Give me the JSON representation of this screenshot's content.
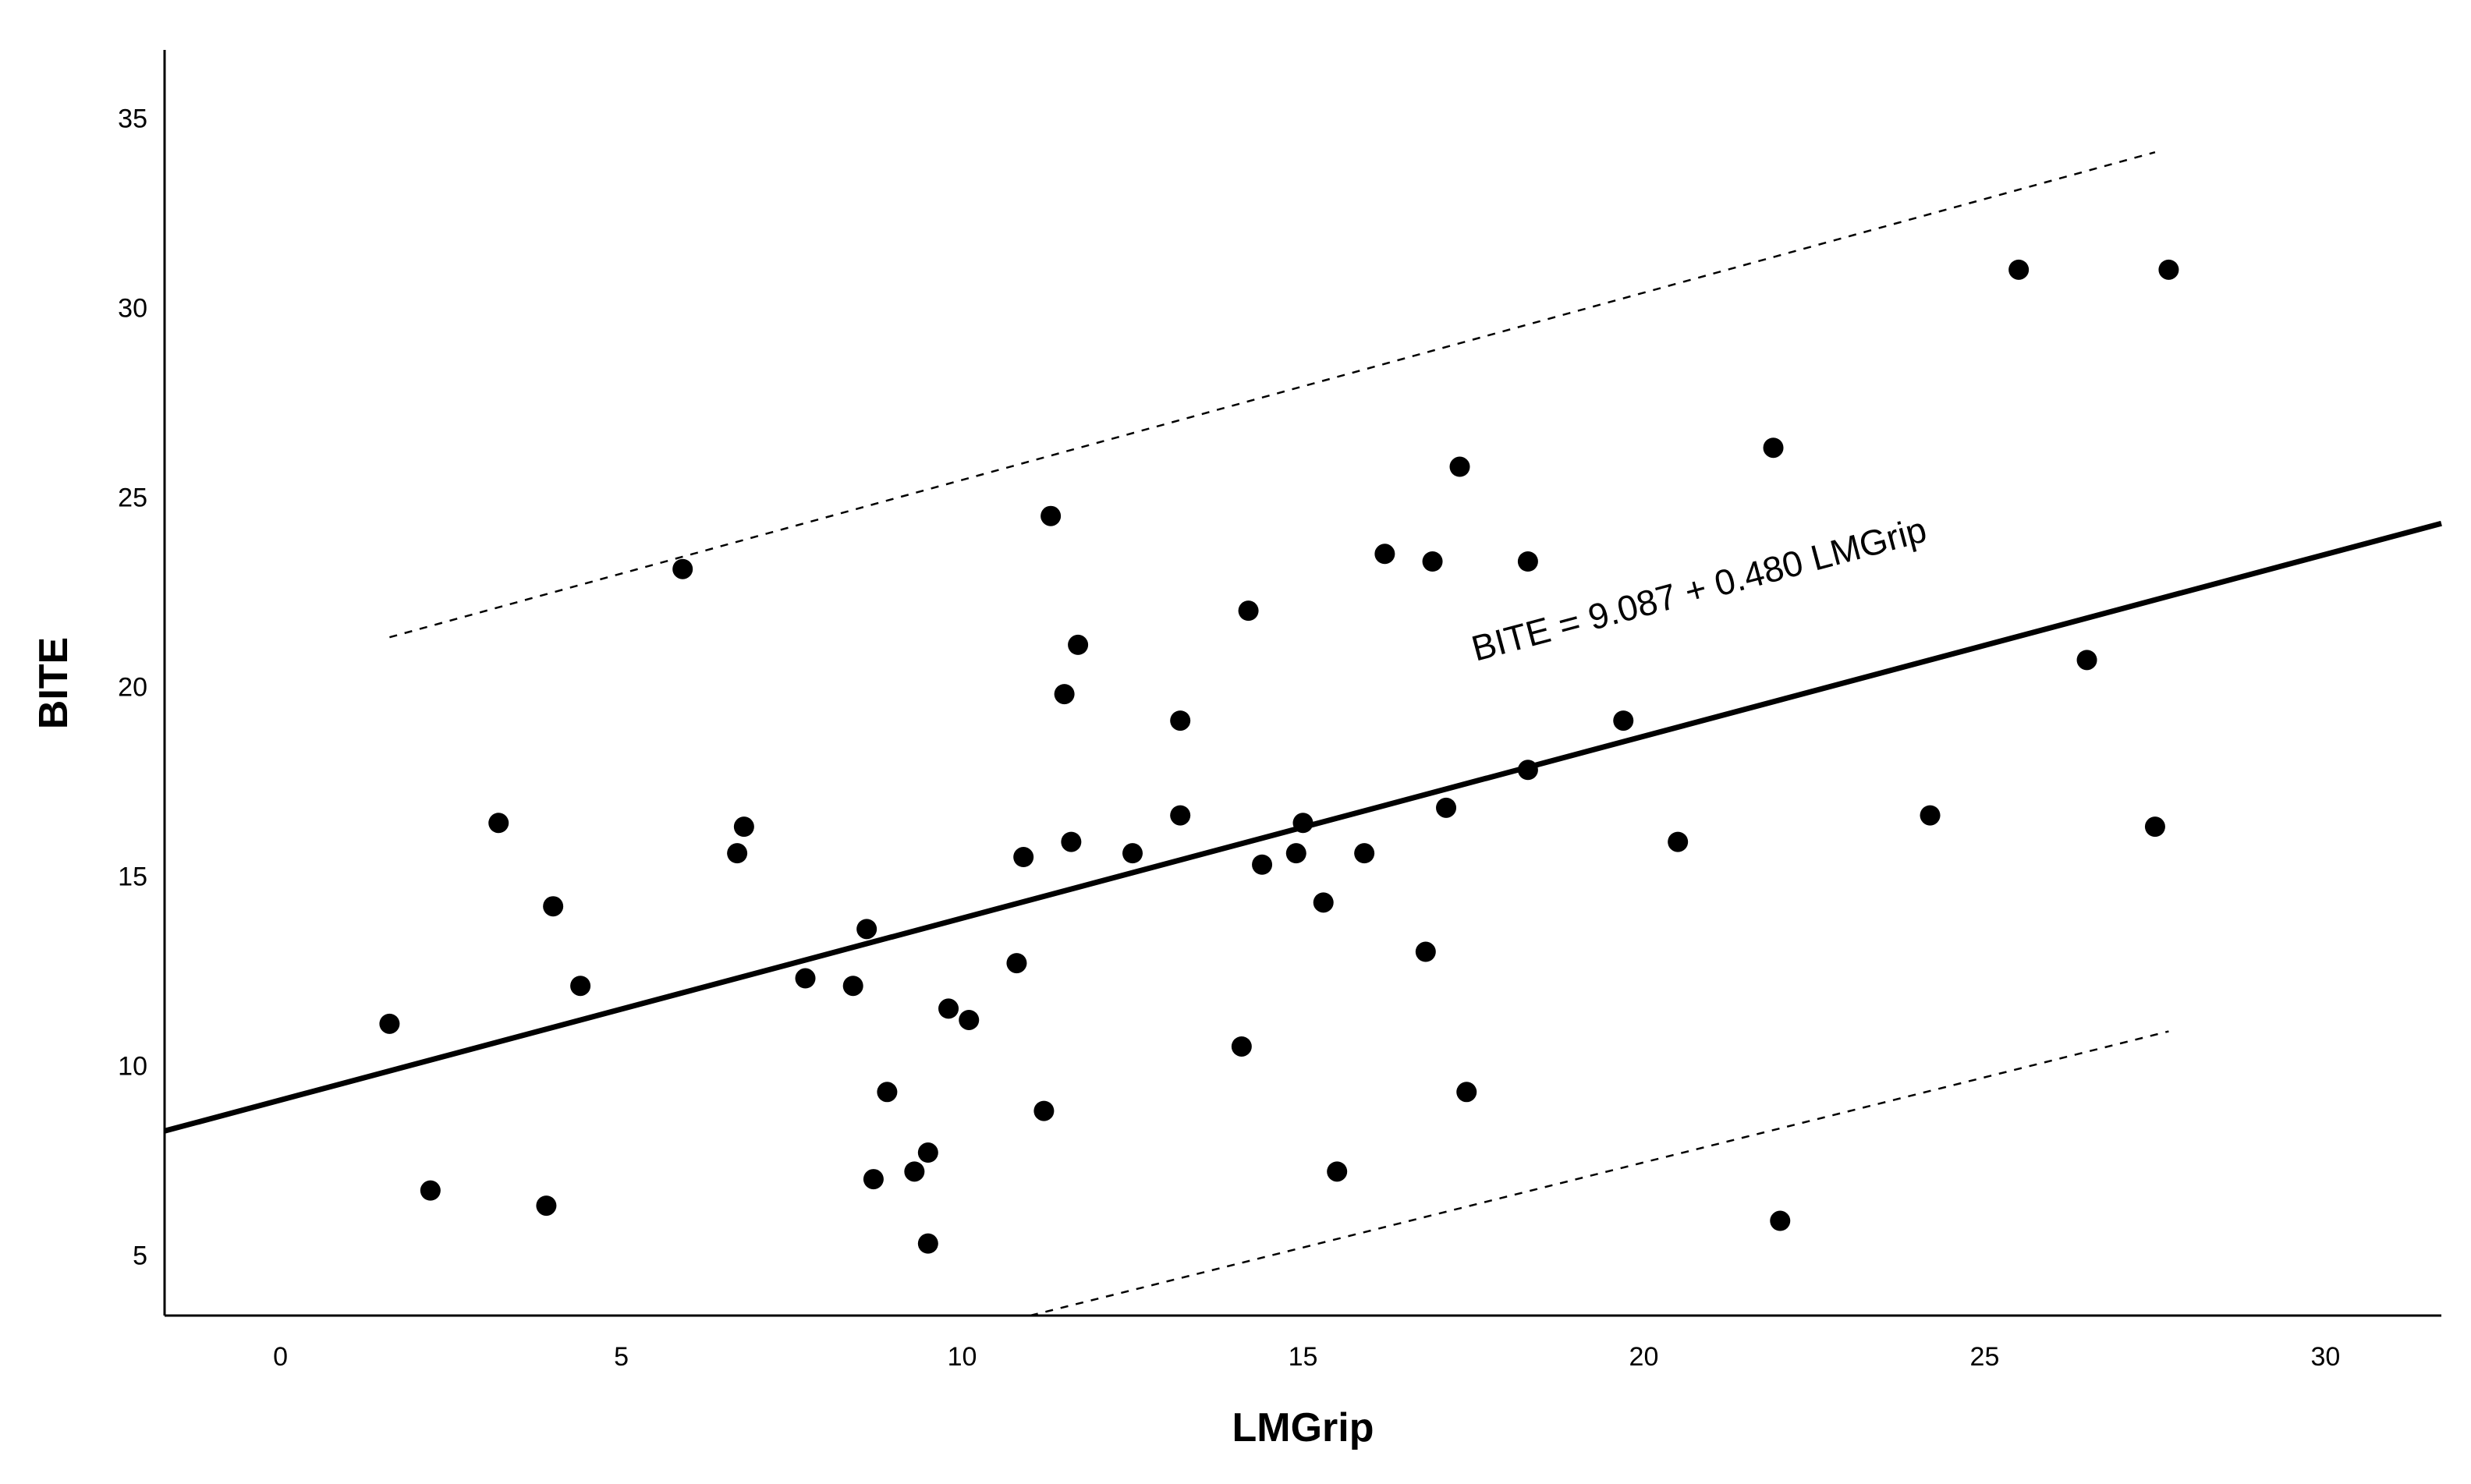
{
  "chart_data": {
    "type": "scatter",
    "xlabel": "LMGrip",
    "ylabel": "BITE",
    "xlim": [
      -1.7,
      31.7
    ],
    "ylim": [
      3.4,
      36.8
    ],
    "x_ticks": [
      "0",
      "5",
      "10",
      "15",
      "20",
      "25",
      "30"
    ],
    "y_ticks": [
      "5",
      "10",
      "15",
      "20",
      "25",
      "30",
      "35"
    ],
    "grid": false,
    "legend": "none",
    "points": [
      {
        "x": 1.6,
        "y": 11.1
      },
      {
        "x": 2.2,
        "y": 6.7
      },
      {
        "x": 3.2,
        "y": 16.4
      },
      {
        "x": 3.9,
        "y": 6.3
      },
      {
        "x": 4.0,
        "y": 14.2
      },
      {
        "x": 4.4,
        "y": 12.1
      },
      {
        "x": 5.9,
        "y": 23.1
      },
      {
        "x": 6.7,
        "y": 15.6
      },
      {
        "x": 6.8,
        "y": 16.3
      },
      {
        "x": 7.7,
        "y": 12.3
      },
      {
        "x": 8.4,
        "y": 12.1
      },
      {
        "x": 8.6,
        "y": 13.6
      },
      {
        "x": 8.7,
        "y": 7.0
      },
      {
        "x": 8.9,
        "y": 9.3
      },
      {
        "x": 9.3,
        "y": 7.2
      },
      {
        "x": 9.5,
        "y": 5.3
      },
      {
        "x": 9.5,
        "y": 7.7
      },
      {
        "x": 9.8,
        "y": 11.5
      },
      {
        "x": 10.1,
        "y": 11.2
      },
      {
        "x": 10.8,
        "y": 12.7
      },
      {
        "x": 10.9,
        "y": 15.5
      },
      {
        "x": 11.2,
        "y": 8.8
      },
      {
        "x": 11.3,
        "y": 24.5
      },
      {
        "x": 11.5,
        "y": 19.8
      },
      {
        "x": 11.6,
        "y": 15.9
      },
      {
        "x": 11.7,
        "y": 21.1
      },
      {
        "x": 12.5,
        "y": 15.6
      },
      {
        "x": 13.2,
        "y": 19.1
      },
      {
        "x": 13.2,
        "y": 16.6
      },
      {
        "x": 14.1,
        "y": 10.5
      },
      {
        "x": 14.2,
        "y": 22.0
      },
      {
        "x": 14.4,
        "y": 15.3
      },
      {
        "x": 14.9,
        "y": 15.6
      },
      {
        "x": 15.0,
        "y": 16.4
      },
      {
        "x": 15.3,
        "y": 14.3
      },
      {
        "x": 15.5,
        "y": 7.2
      },
      {
        "x": 15.9,
        "y": 15.6
      },
      {
        "x": 16.2,
        "y": 23.5
      },
      {
        "x": 16.8,
        "y": 13.0
      },
      {
        "x": 16.9,
        "y": 23.3
      },
      {
        "x": 17.1,
        "y": 16.8
      },
      {
        "x": 17.3,
        "y": 25.8
      },
      {
        "x": 17.4,
        "y": 9.3
      },
      {
        "x": 18.3,
        "y": 23.3
      },
      {
        "x": 18.3,
        "y": 17.8
      },
      {
        "x": 19.7,
        "y": 19.1
      },
      {
        "x": 20.5,
        "y": 15.9
      },
      {
        "x": 21.9,
        "y": 26.3
      },
      {
        "x": 22.0,
        "y": 5.9
      },
      {
        "x": 24.2,
        "y": 16.6
      },
      {
        "x": 25.5,
        "y": 31.0
      },
      {
        "x": 26.5,
        "y": 20.7
      },
      {
        "x": 27.5,
        "y": 16.3
      },
      {
        "x": 27.7,
        "y": 31.0
      }
    ],
    "fit_line": {
      "intercept": 9.087,
      "slope": 0.48,
      "label": "BITE = 9.087 + 0.480 LMGrip"
    },
    "prediction_interval": {
      "upper": [
        {
          "x": 1.6,
          "y": 21.3
        },
        {
          "x": 27.5,
          "y": 34.1
        }
      ],
      "lower": [
        {
          "x": 11.0,
          "y": 3.4
        },
        {
          "x": 27.7,
          "y": 10.9
        }
      ]
    }
  }
}
